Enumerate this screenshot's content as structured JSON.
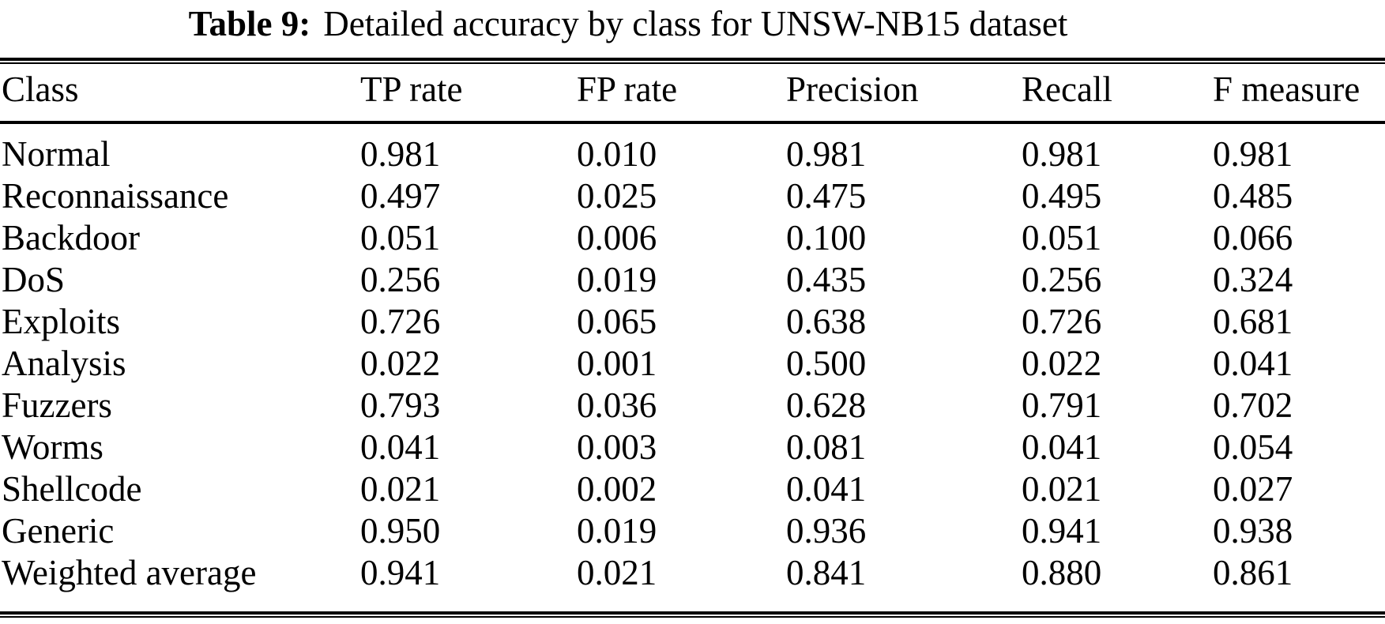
{
  "page": {
    "background": "#ffffff",
    "text_color": "#000000",
    "rule_color": "#000000"
  },
  "caption": {
    "label": "Table 9:",
    "text": "Detailed accuracy by class for UNSW-NB15 dataset"
  },
  "table": {
    "columns": [
      "Class",
      "TP rate",
      "FP rate",
      "Precision",
      "Recall",
      "F measure"
    ],
    "rows": [
      {
        "name": "Normal",
        "tp": "0.981",
        "fp": "0.010",
        "precision": "0.981",
        "recall": "0.981",
        "f": "0.981"
      },
      {
        "name": "Reconnaissance",
        "tp": "0.497",
        "fp": "0.025",
        "precision": "0.475",
        "recall": "0.495",
        "f": "0.485"
      },
      {
        "name": "Backdoor",
        "tp": "0.051",
        "fp": "0.006",
        "precision": "0.100",
        "recall": "0.051",
        "f": "0.066"
      },
      {
        "name": "DoS",
        "tp": "0.256",
        "fp": "0.019",
        "precision": "0.435",
        "recall": "0.256",
        "f": "0.324"
      },
      {
        "name": "Exploits",
        "tp": "0.726",
        "fp": "0.065",
        "precision": "0.638",
        "recall": "0.726",
        "f": "0.681"
      },
      {
        "name": "Analysis",
        "tp": "0.022",
        "fp": "0.001",
        "precision": "0.500",
        "recall": "0.022",
        "f": "0.041"
      },
      {
        "name": "Fuzzers",
        "tp": "0.793",
        "fp": "0.036",
        "precision": "0.628",
        "recall": "0.791",
        "f": "0.702"
      },
      {
        "name": "Worms",
        "tp": "0.041",
        "fp": "0.003",
        "precision": "0.081",
        "recall": "0.041",
        "f": "0.054"
      },
      {
        "name": "Shellcode",
        "tp": "0.021",
        "fp": "0.002",
        "precision": "0.041",
        "recall": "0.021",
        "f": "0.027"
      },
      {
        "name": "Generic",
        "tp": "0.950",
        "fp": "0.019",
        "precision": "0.936",
        "recall": "0.941",
        "f": "0.938"
      },
      {
        "name": "Weighted average",
        "tp": "0.941",
        "fp": "0.021",
        "precision": "0.841",
        "recall": "0.880",
        "f": "0.861"
      }
    ]
  }
}
